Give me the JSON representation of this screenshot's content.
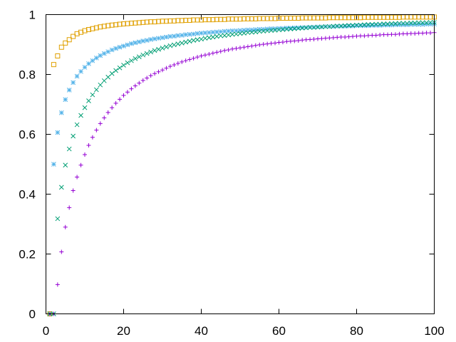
{
  "chart_data": {
    "type": "scatter",
    "title": "",
    "xlabel": "",
    "ylabel": "",
    "xlim": [
      0,
      100
    ],
    "ylim": [
      0,
      1
    ],
    "x_ticks": [
      0,
      20,
      40,
      60,
      80,
      100
    ],
    "y_ticks": [
      0,
      0.2,
      0.4,
      0.6,
      0.8,
      1
    ],
    "x_tick_labels": [
      "0",
      "20",
      "40",
      "60",
      "80",
      "100"
    ],
    "y_tick_labels": [
      "0",
      "0.2",
      "0.4",
      "0.6",
      "0.8",
      "1"
    ],
    "grid": false,
    "legend": "none",
    "x": [
      1,
      2,
      3,
      4,
      5,
      6,
      7,
      8,
      9,
      10,
      11,
      12,
      13,
      14,
      15,
      16,
      17,
      18,
      19,
      20,
      21,
      22,
      23,
      24,
      25,
      26,
      27,
      28,
      29,
      30,
      31,
      32,
      33,
      34,
      35,
      36,
      37,
      38,
      39,
      40,
      41,
      42,
      43,
      44,
      45,
      46,
      47,
      48,
      49,
      50,
      51,
      52,
      53,
      54,
      55,
      56,
      57,
      58,
      59,
      60,
      61,
      62,
      63,
      64,
      65,
      66,
      67,
      68,
      69,
      70,
      71,
      72,
      73,
      74,
      75,
      76,
      77,
      78,
      79,
      80,
      81,
      82,
      83,
      84,
      85,
      86,
      87,
      88,
      89,
      90,
      91,
      92,
      93,
      94,
      95,
      96,
      97,
      98,
      99,
      100
    ],
    "series": [
      {
        "marker": "square",
        "color": "#e0a000",
        "values": [
          0,
          0.833,
          0.862,
          0.891,
          0.905,
          0.916,
          0.927,
          0.936,
          0.941,
          0.946,
          0.95,
          0.953,
          0.956,
          0.959,
          0.961,
          0.963,
          0.965,
          0.966,
          0.968,
          0.969,
          0.97,
          0.971,
          0.972,
          0.973,
          0.974,
          0.975,
          0.976,
          0.976,
          0.977,
          0.978,
          0.978,
          0.979,
          0.979,
          0.98,
          0.98,
          0.981,
          0.981,
          0.982,
          0.982,
          0.982,
          0.983,
          0.983,
          0.983,
          0.984,
          0.984,
          0.984,
          0.985,
          0.985,
          0.985,
          0.985,
          0.986,
          0.986,
          0.986,
          0.986,
          0.987,
          0.987,
          0.987,
          0.987,
          0.987,
          0.988,
          0.988,
          0.988,
          0.988,
          0.988,
          0.988,
          0.989,
          0.989,
          0.989,
          0.989,
          0.989,
          0.989,
          0.989,
          0.99,
          0.99,
          0.99,
          0.99,
          0.99,
          0.99,
          0.99,
          0.99,
          0.99,
          0.991,
          0.991,
          0.991,
          0.991,
          0.991,
          0.991,
          0.991,
          0.991,
          0.991,
          0.991,
          0.992,
          0.992,
          0.992,
          0.992,
          0.992,
          0.992,
          0.992,
          0.992,
          0.992
        ]
      },
      {
        "marker": "asterisk",
        "color": "#56b4e9",
        "values": [
          0,
          0.5,
          0.606,
          0.672,
          0.716,
          0.748,
          0.773,
          0.794,
          0.81,
          0.824,
          0.836,
          0.846,
          0.855,
          0.863,
          0.87,
          0.876,
          0.882,
          0.887,
          0.891,
          0.895,
          0.899,
          0.903,
          0.906,
          0.909,
          0.912,
          0.914,
          0.917,
          0.919,
          0.921,
          0.923,
          0.925,
          0.927,
          0.928,
          0.93,
          0.931,
          0.933,
          0.934,
          0.935,
          0.937,
          0.938,
          0.939,
          0.94,
          0.941,
          0.942,
          0.943,
          0.944,
          0.945,
          0.946,
          0.946,
          0.947,
          0.948,
          0.949,
          0.949,
          0.95,
          0.951,
          0.951,
          0.952,
          0.953,
          0.953,
          0.954,
          0.954,
          0.955,
          0.955,
          0.956,
          0.956,
          0.957,
          0.957,
          0.958,
          0.958,
          0.959,
          0.959,
          0.96,
          0.96,
          0.96,
          0.961,
          0.961,
          0.961,
          0.962,
          0.962,
          0.963,
          0.963,
          0.963,
          0.963,
          0.964,
          0.964,
          0.964,
          0.965,
          0.965,
          0.965,
          0.966,
          0.966,
          0.966,
          0.966,
          0.967,
          0.967,
          0.967,
          0.967,
          0.968,
          0.968,
          0.968
        ]
      },
      {
        "marker": "cross",
        "color": "#009e73",
        "values": [
          0,
          0,
          0.318,
          0.423,
          0.497,
          0.551,
          0.594,
          0.632,
          0.663,
          0.689,
          0.712,
          0.732,
          0.749,
          0.765,
          0.779,
          0.791,
          0.803,
          0.813,
          0.822,
          0.831,
          0.839,
          0.846,
          0.853,
          0.859,
          0.865,
          0.87,
          0.875,
          0.88,
          0.884,
          0.888,
          0.892,
          0.896,
          0.899,
          0.902,
          0.905,
          0.908,
          0.911,
          0.914,
          0.916,
          0.918,
          0.921,
          0.923,
          0.925,
          0.927,
          0.929,
          0.93,
          0.932,
          0.934,
          0.935,
          0.937,
          0.938,
          0.94,
          0.941,
          0.942,
          0.944,
          0.945,
          0.946,
          0.947,
          0.948,
          0.949,
          0.95,
          0.951,
          0.952,
          0.953,
          0.954,
          0.955,
          0.956,
          0.957,
          0.957,
          0.958,
          0.959,
          0.96,
          0.96,
          0.961,
          0.962,
          0.962,
          0.963,
          0.964,
          0.964,
          0.965,
          0.965,
          0.966,
          0.967,
          0.967,
          0.968,
          0.968,
          0.969,
          0.969,
          0.97,
          0.97,
          0.971,
          0.971,
          0.971,
          0.972,
          0.972,
          0.973,
          0.973,
          0.973,
          0.974,
          0.974
        ]
      },
      {
        "marker": "plus",
        "color": "#9400d3",
        "values": [
          0,
          0,
          0.098,
          0.207,
          0.29,
          0.355,
          0.412,
          0.457,
          0.497,
          0.532,
          0.563,
          0.59,
          0.614,
          0.636,
          0.655,
          0.673,
          0.689,
          0.704,
          0.717,
          0.73,
          0.741,
          0.752,
          0.762,
          0.771,
          0.78,
          0.788,
          0.796,
          0.803,
          0.809,
          0.815,
          0.821,
          0.827,
          0.832,
          0.837,
          0.842,
          0.846,
          0.85,
          0.854,
          0.858,
          0.862,
          0.865,
          0.868,
          0.871,
          0.874,
          0.877,
          0.88,
          0.882,
          0.885,
          0.887,
          0.889,
          0.891,
          0.893,
          0.895,
          0.897,
          0.899,
          0.901,
          0.902,
          0.904,
          0.905,
          0.907,
          0.908,
          0.91,
          0.911,
          0.912,
          0.913,
          0.915,
          0.916,
          0.917,
          0.918,
          0.919,
          0.92,
          0.921,
          0.922,
          0.923,
          0.924,
          0.925,
          0.925,
          0.926,
          0.927,
          0.928,
          0.929,
          0.929,
          0.93,
          0.931,
          0.931,
          0.932,
          0.933,
          0.933,
          0.934,
          0.934,
          0.935,
          0.936,
          0.936,
          0.937,
          0.937,
          0.938,
          0.938,
          0.939,
          0.939,
          0.94
        ]
      }
    ]
  }
}
